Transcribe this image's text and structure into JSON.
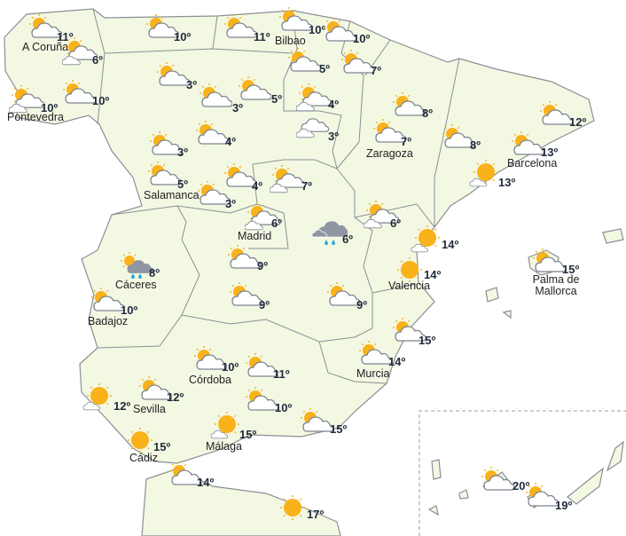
{
  "colors": {
    "land": "#f3f8e3",
    "border": "#8a8f94",
    "sun": "#f9b21a",
    "cloud_fill": "#ffffff",
    "cloud_stroke": "#7d8590",
    "rain_cloud": "#8e95a3",
    "rain_drop": "#2aa6e0",
    "text": "#1f2a3a"
  },
  "stations": [
    {
      "city": "A Coruña",
      "temp": "11º",
      "icon": "partly-cloudy"
    },
    {
      "city": "",
      "temp": "6º",
      "icon": "partly-cloudy-double"
    },
    {
      "city": "Pontevedra",
      "temp": "10º",
      "icon": "partly-cloudy-double"
    },
    {
      "city": "",
      "temp": "10º",
      "icon": "partly-cloudy"
    },
    {
      "city": "",
      "temp": "10º",
      "icon": "partly-cloudy"
    },
    {
      "city": "",
      "temp": "11º",
      "icon": "partly-cloudy"
    },
    {
      "city": "Bilbao",
      "temp": "10º",
      "icon": "partly-cloudy"
    },
    {
      "city": "",
      "temp": "10º",
      "icon": "partly-cloudy"
    },
    {
      "city": "",
      "temp": "5º",
      "icon": "partly-cloudy"
    },
    {
      "city": "",
      "temp": "7º",
      "icon": "partly-cloudy"
    },
    {
      "city": "",
      "temp": "3º",
      "icon": "partly-cloudy"
    },
    {
      "city": "",
      "temp": "3º",
      "icon": "partly-cloudy"
    },
    {
      "city": "",
      "temp": "5º",
      "icon": "partly-cloudy"
    },
    {
      "city": "",
      "temp": "4º",
      "icon": "partly-cloudy-double"
    },
    {
      "city": "",
      "temp": "3º",
      "icon": "cloudy-double"
    },
    {
      "city": "",
      "temp": "8º",
      "icon": "partly-cloudy"
    },
    {
      "city": "Zaragoza",
      "temp": "7º",
      "icon": "partly-cloudy"
    },
    {
      "city": "",
      "temp": "8º",
      "icon": "partly-cloudy"
    },
    {
      "city": "",
      "temp": "12º",
      "icon": "partly-cloudy"
    },
    {
      "city": "Barcelona",
      "temp": "13º",
      "icon": "partly-cloudy"
    },
    {
      "city": "",
      "temp": "13º",
      "icon": "sunny-cloud"
    },
    {
      "city": "",
      "temp": "3º",
      "icon": "partly-cloudy"
    },
    {
      "city": "",
      "temp": "4º",
      "icon": "partly-cloudy"
    },
    {
      "city": "Salamanca",
      "temp": "5º",
      "icon": "partly-cloudy"
    },
    {
      "city": "",
      "temp": "3º",
      "icon": "partly-cloudy"
    },
    {
      "city": "",
      "temp": "4º",
      "icon": "partly-cloudy"
    },
    {
      "city": "",
      "temp": "7º",
      "icon": "partly-cloudy-double"
    },
    {
      "city": "Madrid",
      "temp": "6º",
      "icon": "partly-cloudy-double"
    },
    {
      "city": "",
      "temp": "6º",
      "icon": "rain"
    },
    {
      "city": "",
      "temp": "6º",
      "icon": "partly-cloudy-double"
    },
    {
      "city": "Cáceres",
      "temp": "8º",
      "icon": "rain-sun"
    },
    {
      "city": "Badajoz",
      "temp": "10º",
      "icon": "partly-cloudy"
    },
    {
      "city": "",
      "temp": "9º",
      "icon": "partly-cloudy"
    },
    {
      "city": "",
      "temp": "9º",
      "icon": "partly-cloudy"
    },
    {
      "city": "",
      "temp": "9º",
      "icon": "partly-cloudy"
    },
    {
      "city": "",
      "temp": "14º",
      "icon": "sunny-cloud"
    },
    {
      "city": "Valencia",
      "temp": "14º",
      "icon": "sunny"
    },
    {
      "city": "",
      "temp": "15º",
      "icon": "partly-cloudy"
    },
    {
      "city": "Murcia",
      "temp": "14º",
      "icon": "partly-cloudy"
    },
    {
      "city": "Córdoba",
      "temp": "10º",
      "icon": "partly-cloudy"
    },
    {
      "city": "",
      "temp": "11º",
      "icon": "partly-cloudy"
    },
    {
      "city": "",
      "temp": "12º",
      "icon": "sunny-cloud"
    },
    {
      "city": "Sevilla",
      "temp": "12º",
      "icon": "partly-cloudy"
    },
    {
      "city": "",
      "temp": "10º",
      "icon": "partly-cloudy"
    },
    {
      "city": "",
      "temp": "15º",
      "icon": "partly-cloudy"
    },
    {
      "city": "Málaga",
      "temp": "15º",
      "icon": "sunny-cloud"
    },
    {
      "city": "Cádiz",
      "temp": "15º",
      "icon": "sunny"
    },
    {
      "city": "",
      "temp": "14º",
      "icon": "partly-cloudy"
    },
    {
      "city": "",
      "temp": "17º",
      "icon": "sunny"
    },
    {
      "city": "Palma de Mallorca",
      "temp": "15º",
      "icon": "partly-cloudy"
    },
    {
      "city": "",
      "temp": "20º",
      "icon": "partly-cloudy"
    },
    {
      "city": "",
      "temp": "19º",
      "icon": "partly-cloudy"
    }
  ]
}
